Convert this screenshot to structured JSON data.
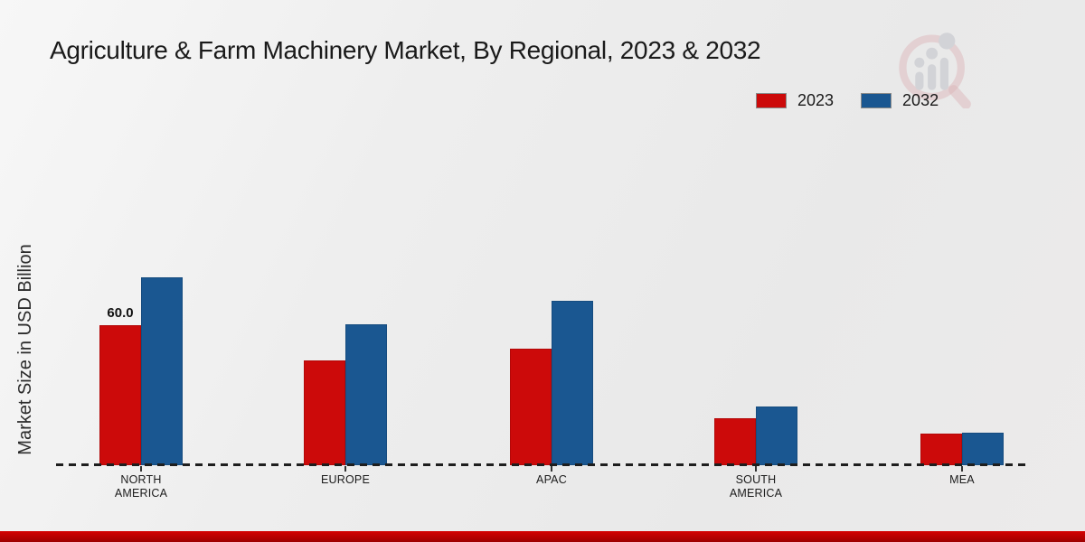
{
  "header": {
    "title": "Agriculture & Farm Machinery Market, By Regional, 2023 & 2032"
  },
  "legend": {
    "items": [
      {
        "label": "2023",
        "color": "#cc0a0a"
      },
      {
        "label": "2032",
        "color": "#1a5791"
      }
    ]
  },
  "watermark": {
    "icon": "magnifier-bar-chart-logo",
    "circle_color": "#d9a9ad",
    "bars_color": "#cfd0d4"
  },
  "chart_data": {
    "type": "bar",
    "title": "Agriculture & Farm Machinery Market, By Regional, 2023 & 2032",
    "xlabel": "",
    "ylabel": "Market Size in USD Billion",
    "categories": [
      "NORTH AMERICA",
      "EUROPE",
      "APAC",
      "SOUTH AMERICA",
      "MEA"
    ],
    "category_label_lines": [
      [
        "NORTH",
        "AMERICA"
      ],
      [
        "EUROPE"
      ],
      [
        "APAC"
      ],
      [
        "SOUTH",
        "AMERICA"
      ],
      [
        "MEA"
      ]
    ],
    "series": [
      {
        "name": "2023",
        "color": "#cc0a0a",
        "values": [
          60.0,
          45.0,
          50.0,
          20.0,
          13.5
        ]
      },
      {
        "name": "2032",
        "color": "#1a5791",
        "values": [
          80.5,
          60.5,
          70.5,
          25.0,
          14.0
        ]
      }
    ],
    "bar_annotations": [
      {
        "series": "2023",
        "category": "NORTH AMERICA",
        "text": "60.0"
      }
    ],
    "ylim": [
      0,
      100
    ],
    "grid": false,
    "baseline_style": "dashed",
    "legend_position": "top-right"
  },
  "footer": {
    "bar_color": "#bf0404"
  }
}
